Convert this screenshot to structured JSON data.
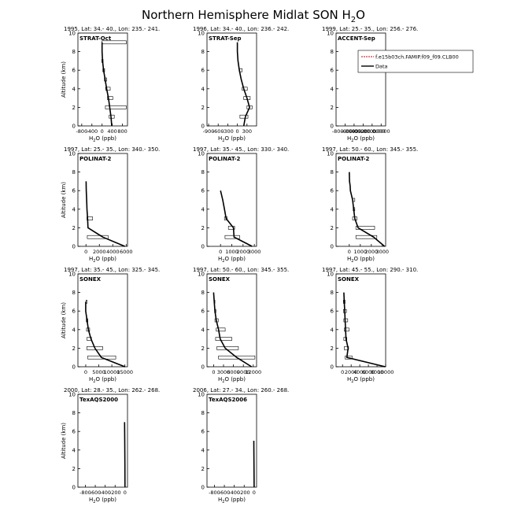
{
  "figure": {
    "title_main": "Northern Hemisphere Midlat SON H",
    "title_sub": "2",
    "title_tail": "O",
    "ylabel": "Altitude (km)",
    "xlabel_main": "H",
    "xlabel_sub": "2",
    "xlabel_tail": "O (ppb)"
  },
  "chart_data": [
    {
      "type": "line",
      "header": "1995, Lat: 34.- 40., Lon: 235.- 241.",
      "campaign": "STRAT-Oct",
      "xlim": [
        -950,
        1000
      ],
      "xticks": [
        -800,
        -400,
        0,
        400,
        800
      ],
      "xticklabels": [
        "-800",
        "-400",
        "0",
        "400",
        "800"
      ],
      "ylim": [
        0,
        10
      ],
      "yticks": [
        0,
        2,
        4,
        6,
        8,
        10
      ],
      "data_x": [
        380,
        350,
        300,
        250,
        180,
        120,
        60,
        20,
        0,
        0,
        0
      ],
      "data_y": [
        0,
        1,
        2,
        3,
        4,
        5,
        6,
        7,
        8,
        8.5,
        9
      ],
      "boxes": [
        [
          280,
          480,
          1
        ],
        [
          130,
          950,
          2
        ],
        [
          210,
          420,
          3
        ],
        [
          140,
          320,
          4
        ],
        [
          90,
          180,
          5
        ],
        [
          30,
          100,
          6
        ],
        [
          -10,
          40,
          7
        ],
        [
          0,
          950,
          9
        ]
      ]
    },
    {
      "type": "line",
      "header": "1996, Lat: 34.- 40., Lon: 236.- 242.",
      "campaign": "STRAT-Sep",
      "xlim": [
        -950,
        600
      ],
      "xticks": [
        -900,
        -600,
        -300,
        0,
        300
      ],
      "xticklabels": [
        "-900",
        "-600",
        "-300",
        "0",
        "300"
      ],
      "ylim": [
        0,
        10
      ],
      "yticks": [
        0,
        2,
        4,
        6,
        8,
        10
      ],
      "data_x": [
        200,
        250,
        380,
        300,
        200,
        120,
        60,
        20,
        0,
        0
      ],
      "data_y": [
        0,
        1,
        2,
        3,
        4,
        5,
        6,
        7,
        8,
        9
      ],
      "boxes": [
        [
          80,
          330,
          1
        ],
        [
          300,
          460,
          2
        ],
        [
          200,
          400,
          3
        ],
        [
          150,
          310,
          4
        ],
        [
          60,
          150,
          6
        ]
      ]
    },
    {
      "type": "line",
      "header": "1999, Lat: 25.- 35., Lon: 256.- 276.",
      "campaign": "ACCENT-Sep",
      "xlim": [
        -1000,
        100
      ],
      "xticks": [
        -800,
        -600,
        -400,
        -200,
        0
      ],
      "xticklabels": [
        "-800.0000",
        "-600.0000",
        "-400.0000",
        "-200.0000",
        "0.0000"
      ],
      "ylim": [
        0,
        10
      ],
      "yticks": [
        0,
        2,
        4,
        6,
        8,
        10
      ],
      "data_x": [],
      "data_y": [],
      "boxes": [],
      "legend": {
        "position": "top-right",
        "entries": [
          "f.e15b03ch.FAMIP.f09_f09.CLB00",
          "Data"
        ]
      }
    },
    {
      "type": "line",
      "header": "1997, Lat: 25.- 35., Lon: 340.- 350.",
      "campaign": "POLINAT-2",
      "xlim": [
        -1200,
        6200
      ],
      "xticks": [
        0,
        2000,
        4000,
        6000
      ],
      "xticklabels": [
        "0",
        "2000",
        "4000",
        "6000"
      ],
      "ylim": [
        0,
        10
      ],
      "yticks": [
        0,
        2,
        4,
        6,
        8,
        10
      ],
      "data_x": [
        5800,
        2500,
        300,
        250,
        150,
        100,
        50,
        20
      ],
      "data_y": [
        0,
        1,
        2,
        3,
        4,
        5,
        6,
        7
      ],
      "boxes": [
        [
          200,
          3300,
          1
        ],
        [
          150,
          1000,
          3
        ]
      ]
    },
    {
      "type": "line",
      "header": "1997, Lat: 35.- 45., Lon: 330.- 340.",
      "campaign": "POLINAT-2",
      "xlim": [
        -1200,
        3200
      ],
      "xticks": [
        0,
        1000,
        2000,
        3000
      ],
      "xticklabels": [
        "0",
        "1000",
        "2000",
        "3000"
      ],
      "ylim": [
        0,
        10
      ],
      "yticks": [
        0,
        2,
        4,
        6,
        8,
        10
      ],
      "data_x": [
        2800,
        1200,
        1150,
        500,
        350,
        200,
        0
      ],
      "data_y": [
        0,
        1,
        2,
        3,
        4,
        5,
        6
      ],
      "boxes": [
        [
          400,
          1700,
          1
        ],
        [
          700,
          1250,
          2
        ],
        [
          350,
          600,
          3
        ]
      ]
    },
    {
      "type": "line",
      "header": "1997, Lat: 50.- 60., Lon: 345.- 355.",
      "campaign": "POLINAT-2",
      "xlim": [
        -1200,
        3300
      ],
      "xticks": [
        0,
        1000,
        2000,
        3000
      ],
      "xticklabels": [
        "0",
        "1000",
        "2000",
        "3000"
      ],
      "ylim": [
        0,
        10
      ],
      "yticks": [
        0,
        2,
        4,
        6,
        8,
        10
      ],
      "data_x": [
        3200,
        2200,
        800,
        500,
        400,
        300,
        100,
        80,
        20,
        0
      ],
      "data_y": [
        0,
        1,
        2,
        3,
        4,
        5,
        6,
        6.5,
        7,
        8
      ],
      "boxes": [
        [
          600,
          2500,
          1
        ],
        [
          600,
          2300,
          2
        ],
        [
          300,
          700,
          3
        ],
        [
          350,
          500,
          4
        ],
        [
          300,
          500,
          5
        ]
      ]
    },
    {
      "type": "line",
      "header": "1997, Lat: 35.- 45., Lon: 325.- 345.",
      "campaign": "SONEX",
      "xlim": [
        -3000,
        16000
      ],
      "xticks": [
        0,
        5000,
        10000,
        15000
      ],
      "xticklabels": [
        "0",
        "5000",
        "10000",
        "15000"
      ],
      "ylim": [
        0,
        10
      ],
      "yticks": [
        0,
        2,
        4,
        6,
        8,
        10
      ],
      "data_x": [
        15000,
        6000,
        3500,
        2000,
        1000,
        500,
        0,
        0
      ],
      "data_y": [
        0,
        1,
        2,
        3,
        4,
        5,
        6,
        7
      ],
      "boxes": [
        [
          800,
          11500,
          1
        ],
        [
          400,
          6500,
          2
        ],
        [
          500,
          2200,
          3
        ],
        [
          300,
          1500,
          4
        ],
        [
          200,
          800,
          5
        ],
        [
          100,
          500,
          7
        ]
      ]
    },
    {
      "type": "line",
      "header": "1997, Lat: 50.- 60., Lon: 345.- 355.",
      "campaign": "SONEX",
      "xlim": [
        -2000,
        13000
      ],
      "xticks": [
        0,
        3000,
        6000,
        9000,
        12000
      ],
      "xticklabels": [
        "0",
        "3000",
        "6000",
        "9000",
        "12000"
      ],
      "ylim": [
        0,
        10
      ],
      "yticks": [
        0,
        2,
        4,
        6,
        8,
        10
      ],
      "data_x": [
        11500,
        7000,
        3500,
        2000,
        1500,
        800,
        400,
        200,
        0
      ],
      "data_y": [
        0,
        1,
        2,
        3,
        4,
        5,
        6,
        7,
        8
      ],
      "boxes": [
        [
          1500,
          12500,
          1
        ],
        [
          1000,
          7500,
          2
        ],
        [
          600,
          5500,
          3
        ],
        [
          800,
          3500,
          4
        ],
        [
          400,
          1400,
          5
        ],
        [
          300,
          700,
          6
        ],
        [
          200,
          400,
          7
        ]
      ]
    },
    {
      "type": "line",
      "header": "1997, Lat: 45.- 55., Lon: 290.- 310.",
      "campaign": "SONEX",
      "xlim": [
        -1500,
        10000
      ],
      "xticks": [
        0,
        2000,
        4000,
        6000,
        8000,
        10000
      ],
      "xticklabels": [
        "0",
        "2000",
        "4000",
        "6000",
        "8000",
        "10000"
      ],
      "ylim": [
        0,
        10
      ],
      "yticks": [
        0,
        2,
        4,
        6,
        8,
        10
      ],
      "data_x": [
        9900,
        1000,
        1300,
        800,
        700,
        600,
        500,
        400,
        300
      ],
      "data_y": [
        0,
        1,
        2,
        3,
        4,
        5,
        6,
        7,
        8
      ],
      "boxes": [
        [
          600,
          2200,
          1
        ],
        [
          400,
          1400,
          2
        ],
        [
          300,
          1000,
          3
        ],
        [
          400,
          1500,
          4
        ],
        [
          300,
          1200,
          5
        ],
        [
          200,
          900,
          6
        ],
        [
          200,
          600,
          7
        ]
      ]
    },
    {
      "type": "line",
      "header": "2000, Lat: 28.- 35., Lon: 262.- 268.",
      "campaign": "TexAQS2000",
      "xlim": [
        -950,
        50
      ],
      "xticks": [
        -800,
        -600,
        -400,
        -200,
        0
      ],
      "xticklabels": [
        "-800",
        "-600",
        "-400",
        "-200",
        "0"
      ],
      "ylim": [
        0,
        10
      ],
      "yticks": [
        0,
        2,
        4,
        6,
        8,
        10
      ],
      "data_x": [
        0,
        -2,
        -5,
        -8
      ],
      "data_y": [
        0,
        2.5,
        5,
        7
      ],
      "boxes": []
    },
    {
      "type": "line",
      "header": "2006, Lat: 27.- 34., Lon: 260.- 268.",
      "campaign": "TexAQS2006",
      "xlim": [
        -950,
        50
      ],
      "xticks": [
        -800,
        -600,
        -400,
        -200,
        0
      ],
      "xticklabels": [
        "-800",
        "-600",
        "-400",
        "-200",
        "0"
      ],
      "ylim": [
        0,
        10
      ],
      "yticks": [
        0,
        2,
        4,
        6,
        8,
        10
      ],
      "data_x": [
        0,
        -3,
        -6
      ],
      "data_y": [
        0,
        2.5,
        5
      ],
      "boxes": []
    }
  ]
}
